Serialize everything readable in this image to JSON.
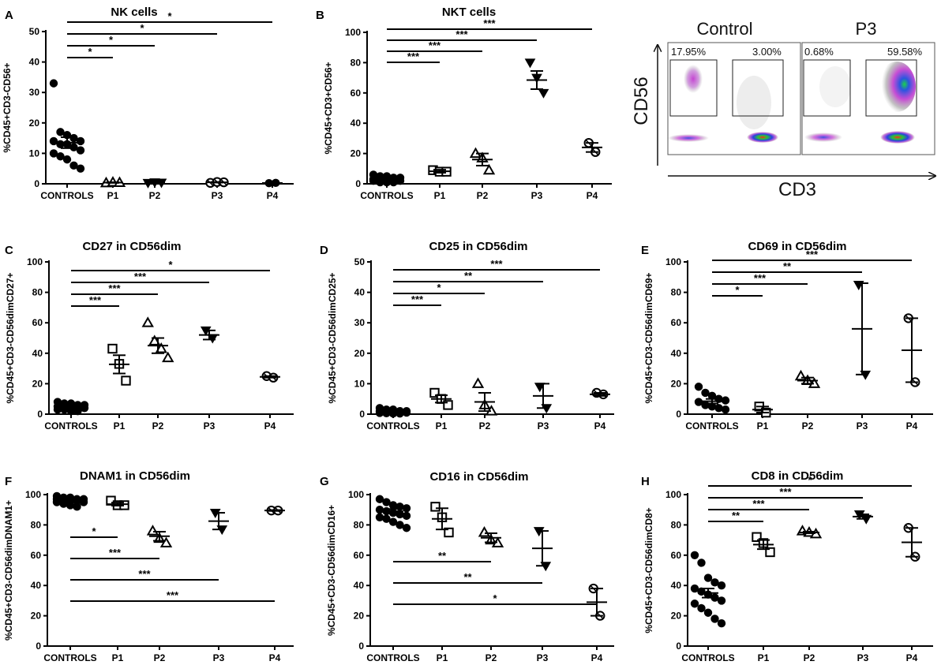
{
  "chart_data": [
    {
      "id": "A",
      "letter": "A",
      "type": "scatter",
      "title": "NK cells",
      "ylabel": "%CD45+CD3-CD56+",
      "ylim": [
        0,
        50
      ],
      "yticks": [
        0,
        10,
        20,
        30,
        40,
        50
      ],
      "categories": [
        "CONTROLS",
        "P1",
        "P2",
        "P3",
        "P4"
      ],
      "groups": [
        {
          "name": "CONTROLS",
          "marker": "circle-filled",
          "values": [
            33,
            17,
            16,
            15,
            14,
            14,
            13,
            13,
            12,
            11,
            10,
            9,
            8,
            6,
            5
          ],
          "mean": 13.5,
          "err": 1.8
        },
        {
          "name": "P1",
          "marker": "triangle-open",
          "values": [
            0.3,
            0.5,
            0.4
          ],
          "mean": 0.4,
          "err": 0.1
        },
        {
          "name": "P2",
          "marker": "triangle-down-filled",
          "values": [
            0.3,
            0.5,
            0.4
          ],
          "mean": 0.4,
          "err": 0.1
        },
        {
          "name": "P3",
          "marker": "circle-open-half",
          "values": [
            0.3,
            0.6,
            0.5
          ],
          "mean": 0.5,
          "err": 0.1
        },
        {
          "name": "P4",
          "marker": "circle-filled",
          "values": [
            0.2,
            0.3
          ],
          "mean": 0.25,
          "err": 0.05
        }
      ],
      "significance": [
        {
          "from": 0,
          "to": 1,
          "label": "*"
        },
        {
          "from": 0,
          "to": 2,
          "label": "*"
        },
        {
          "from": 0,
          "to": 3,
          "label": "*"
        },
        {
          "from": 0,
          "to": 4,
          "label": "*"
        }
      ]
    },
    {
      "id": "B",
      "letter": "B",
      "type": "scatter",
      "title": "NKT cells",
      "ylabel": "%CD45+CD3+CD56+",
      "ylim": [
        0,
        100
      ],
      "yticks": [
        0,
        20,
        40,
        60,
        80,
        100
      ],
      "categories": [
        "CONTROLS",
        "P1",
        "P2",
        "P3",
        "P4"
      ],
      "groups": [
        {
          "name": "CONTROLS",
          "marker": "circle-filled",
          "values": [
            6,
            5,
            5,
            4,
            4,
            3,
            3,
            3,
            2,
            2,
            2,
            1,
            1,
            1
          ],
          "mean": 3,
          "err": 0.5
        },
        {
          "name": "P1",
          "marker": "square-open",
          "values": [
            9,
            8,
            8
          ],
          "mean": 8.3,
          "err": 1
        },
        {
          "name": "P2",
          "marker": "triangle-open",
          "values": [
            20,
            17,
            9
          ],
          "mean": 16,
          "err": 4
        },
        {
          "name": "P3",
          "marker": "triangle-down-filled",
          "values": [
            80,
            70,
            60
          ],
          "mean": 68.5,
          "err": 6
        },
        {
          "name": "P4",
          "marker": "circle-open-half",
          "values": [
            27,
            21
          ],
          "mean": 24,
          "err": 3
        }
      ],
      "significance": [
        {
          "from": 0,
          "to": 1,
          "label": "***"
        },
        {
          "from": 0,
          "to": 2,
          "label": "***"
        },
        {
          "from": 0,
          "to": 3,
          "label": "***"
        },
        {
          "from": 0,
          "to": 4,
          "label": "***"
        }
      ]
    },
    {
      "id": "C",
      "letter": "C",
      "type": "scatter",
      "title": "CD27 in CD56dim",
      "ylabel": "%CD45+CD3-CD56dimCD27+",
      "ylim": [
        0,
        100
      ],
      "yticks": [
        0,
        20,
        40,
        60,
        80,
        100
      ],
      "categories": [
        "CONTROLS",
        "P1",
        "P2",
        "P3",
        "P4"
      ],
      "groups": [
        {
          "name": "CONTROLS",
          "marker": "circle-filled",
          "values": [
            8,
            7,
            7,
            6,
            6,
            5,
            5,
            5,
            4,
            4,
            3,
            3,
            2,
            2
          ],
          "mean": 4.8,
          "err": 0.5
        },
        {
          "name": "P1",
          "marker": "square-open",
          "values": [
            43,
            33,
            22
          ],
          "mean": 32.7,
          "err": 6
        },
        {
          "name": "P2",
          "marker": "triangle-open",
          "values": [
            60,
            48,
            43,
            37
          ],
          "mean": 45,
          "err": 5
        },
        {
          "name": "P3",
          "marker": "triangle-down-filled",
          "values": [
            55,
            50
          ],
          "mean": 52,
          "err": 3
        },
        {
          "name": "P4",
          "marker": "circle-open-half",
          "values": [
            25,
            24
          ],
          "mean": 24.5,
          "err": 0.5
        }
      ],
      "significance": [
        {
          "from": 0,
          "to": 1,
          "label": "***"
        },
        {
          "from": 0,
          "to": 2,
          "label": "***"
        },
        {
          "from": 0,
          "to": 3,
          "label": "***"
        },
        {
          "from": 0,
          "to": 4,
          "label": "*"
        }
      ]
    },
    {
      "id": "D",
      "letter": "D",
      "type": "scatter",
      "title": "CD25 in CD56dim",
      "ylabel": "%CD45+CD3-CD56dimCD25+",
      "ylim": [
        0,
        50
      ],
      "yticks": [
        0,
        10,
        20,
        30,
        40,
        50
      ],
      "categories": [
        "CONTROLS",
        "P1",
        "P2",
        "P3",
        "P4"
      ],
      "groups": [
        {
          "name": "CONTROLS",
          "marker": "circle-filled",
          "values": [
            2,
            1.5,
            1.5,
            1,
            1,
            1,
            0.8,
            0.6,
            0.5,
            0.5,
            0.4,
            0.3,
            0.2,
            0.2
          ],
          "mean": 0.8,
          "err": 0.2
        },
        {
          "name": "P1",
          "marker": "square-open",
          "values": [
            7,
            5,
            3
          ],
          "mean": 5,
          "err": 1.2
        },
        {
          "name": "P2",
          "marker": "triangle-open",
          "values": [
            10,
            3,
            1
          ],
          "mean": 4,
          "err": 3
        },
        {
          "name": "P3",
          "marker": "triangle-down-filled",
          "values": [
            9,
            2
          ],
          "mean": 6,
          "err": 4
        },
        {
          "name": "P4",
          "marker": "circle-open-half",
          "values": [
            7,
            6.5
          ],
          "mean": 6.5,
          "err": 0.5
        }
      ],
      "significance": [
        {
          "from": 0,
          "to": 1,
          "label": "***"
        },
        {
          "from": 0,
          "to": 2,
          "label": "*"
        },
        {
          "from": 0,
          "to": 3,
          "label": "**"
        },
        {
          "from": 0,
          "to": 4,
          "label": "***"
        }
      ]
    },
    {
      "id": "E",
      "letter": "E",
      "type": "scatter",
      "title": "CD69 in CD56dim",
      "ylabel": "%CD45+CD3-CD56dimCD69+",
      "ylim": [
        0,
        100
      ],
      "yticks": [
        0,
        20,
        40,
        60,
        80,
        100
      ],
      "categories": [
        "CONTROLS",
        "P1",
        "P2",
        "P3",
        "P4"
      ],
      "groups": [
        {
          "name": "CONTROLS",
          "marker": "circle-filled",
          "values": [
            18,
            14,
            12,
            10,
            9,
            8,
            6,
            5,
            4,
            3
          ],
          "mean": 8.5,
          "err": 1.5
        },
        {
          "name": "P1",
          "marker": "square-open",
          "values": [
            5,
            1
          ],
          "mean": 3,
          "err": 2
        },
        {
          "name": "P2",
          "marker": "triangle-open",
          "values": [
            25,
            22,
            20
          ],
          "mean": 22,
          "err": 2
        },
        {
          "name": "P3",
          "marker": "triangle-down-filled",
          "values": [
            85,
            26
          ],
          "mean": 56,
          "err": 30
        },
        {
          "name": "P4",
          "marker": "circle-open-half",
          "values": [
            63,
            21
          ],
          "mean": 42,
          "err": 21
        }
      ],
      "significance": [
        {
          "from": 0,
          "to": 1,
          "label": "*"
        },
        {
          "from": 0,
          "to": 2,
          "label": "***"
        },
        {
          "from": 0,
          "to": 3,
          "label": "**"
        },
        {
          "from": 0,
          "to": 4,
          "label": "***"
        }
      ]
    },
    {
      "id": "F",
      "letter": "F",
      "type": "scatter",
      "title": "DNAM1 in CD56dim",
      "ylabel": "%CD45+CD3-CD56dimDNAM1+",
      "ylim": [
        0,
        100
      ],
      "yticks": [
        0,
        20,
        40,
        60,
        80,
        100
      ],
      "categories": [
        "CONTROLS",
        "P1",
        "P2",
        "P3",
        "P4"
      ],
      "groups": [
        {
          "name": "CONTROLS",
          "marker": "circle-filled",
          "values": [
            99,
            98,
            98,
            97,
            97,
            97,
            96,
            96,
            96,
            95,
            95,
            94,
            93,
            92
          ],
          "mean": 96.5,
          "err": 0.6
        },
        {
          "name": "P1",
          "marker": "square-open",
          "values": [
            96,
            93,
            93
          ],
          "mean": 93.7,
          "err": 1
        },
        {
          "name": "P2",
          "marker": "triangle-open",
          "values": [
            76,
            71,
            68
          ],
          "mean": 72.5,
          "err": 3
        },
        {
          "name": "P3",
          "marker": "triangle-down-filled",
          "values": [
            88,
            77
          ],
          "mean": 82.5,
          "err": 5.5
        },
        {
          "name": "P4",
          "marker": "circle-open-half",
          "values": [
            89.5,
            89.5
          ],
          "mean": 89.5,
          "err": 0.3
        }
      ],
      "significance": [
        {
          "from": 0,
          "to": 1,
          "label": "*"
        },
        {
          "from": 0,
          "to": 2,
          "label": "***"
        },
        {
          "from": 0,
          "to": 3,
          "label": "***"
        },
        {
          "from": 0,
          "to": 4,
          "label": "***"
        }
      ]
    },
    {
      "id": "G",
      "letter": "G",
      "type": "scatter",
      "title": "CD16 in CD56dim",
      "ylabel": "%CD45+CD3-CD56dimCD16+",
      "ylim": [
        0,
        100
      ],
      "yticks": [
        0,
        20,
        40,
        60,
        80,
        100
      ],
      "categories": [
        "CONTROLS",
        "P1",
        "P2",
        "P3",
        "P4"
      ],
      "groups": [
        {
          "name": "CONTROLS",
          "marker": "circle-filled",
          "values": [
            97,
            95,
            93,
            92,
            91,
            90,
            89,
            88,
            87,
            86,
            85,
            84,
            82,
            80,
            78
          ],
          "mean": 89,
          "err": 1.5
        },
        {
          "name": "P1",
          "marker": "square-open",
          "values": [
            92,
            85,
            75
          ],
          "mean": 84,
          "err": 7
        },
        {
          "name": "P2",
          "marker": "triangle-open",
          "values": [
            75,
            70,
            68
          ],
          "mean": 71.5,
          "err": 3
        },
        {
          "name": "P3",
          "marker": "triangle-down-filled",
          "values": [
            76,
            53
          ],
          "mean": 64.5,
          "err": 11.5
        },
        {
          "name": "P4",
          "marker": "circle-open-half",
          "values": [
            38,
            20
          ],
          "mean": 29,
          "err": 9
        }
      ],
      "significance": [
        {
          "from": 0,
          "to": 2,
          "label": "**"
        },
        {
          "from": 0,
          "to": 3,
          "label": "**"
        },
        {
          "from": 0,
          "to": 4,
          "label": "*"
        }
      ]
    },
    {
      "id": "H",
      "letter": "H",
      "type": "scatter",
      "title": "CD8 in CD56dim",
      "ylabel": "%CD45+CD3-CD56dimCD8+",
      "ylim": [
        0,
        100
      ],
      "yticks": [
        0,
        20,
        40,
        60,
        80,
        100
      ],
      "categories": [
        "CONTROLS",
        "P1",
        "P2",
        "P3",
        "P4"
      ],
      "groups": [
        {
          "name": "CONTROLS",
          "marker": "circle-filled",
          "values": [
            60,
            55,
            45,
            42,
            40,
            38,
            36,
            34,
            32,
            30,
            28,
            25,
            22,
            18,
            15
          ],
          "mean": 35,
          "err": 3
        },
        {
          "name": "P1",
          "marker": "square-open",
          "values": [
            72,
            68,
            62
          ],
          "mean": 67,
          "err": 3
        },
        {
          "name": "P2",
          "marker": "triangle-open",
          "values": [
            76,
            75,
            74
          ],
          "mean": 75,
          "err": 0.5
        },
        {
          "name": "P3",
          "marker": "triangle-down-filled",
          "values": [
            87,
            84
          ],
          "mean": 85.5,
          "err": 1.5
        },
        {
          "name": "P4",
          "marker": "circle-open-half",
          "values": [
            78,
            59
          ],
          "mean": 68.5,
          "err": 9.5
        }
      ],
      "significance": [
        {
          "from": 0,
          "to": 1,
          "label": "**"
        },
        {
          "from": 0,
          "to": 2,
          "label": "***"
        },
        {
          "from": 0,
          "to": 3,
          "label": "***"
        },
        {
          "from": 0,
          "to": 4,
          "label": "*"
        }
      ]
    }
  ],
  "flow_plot": {
    "panels": [
      {
        "name": "Control",
        "gates": [
          {
            "label": "17.95%"
          },
          {
            "label": "3.00%"
          }
        ]
      },
      {
        "name": "P3",
        "gates": [
          {
            "label": "0.68%"
          },
          {
            "label": "59.58%"
          }
        ]
      }
    ],
    "yaxis": "CD56",
    "xaxis": "CD3"
  }
}
